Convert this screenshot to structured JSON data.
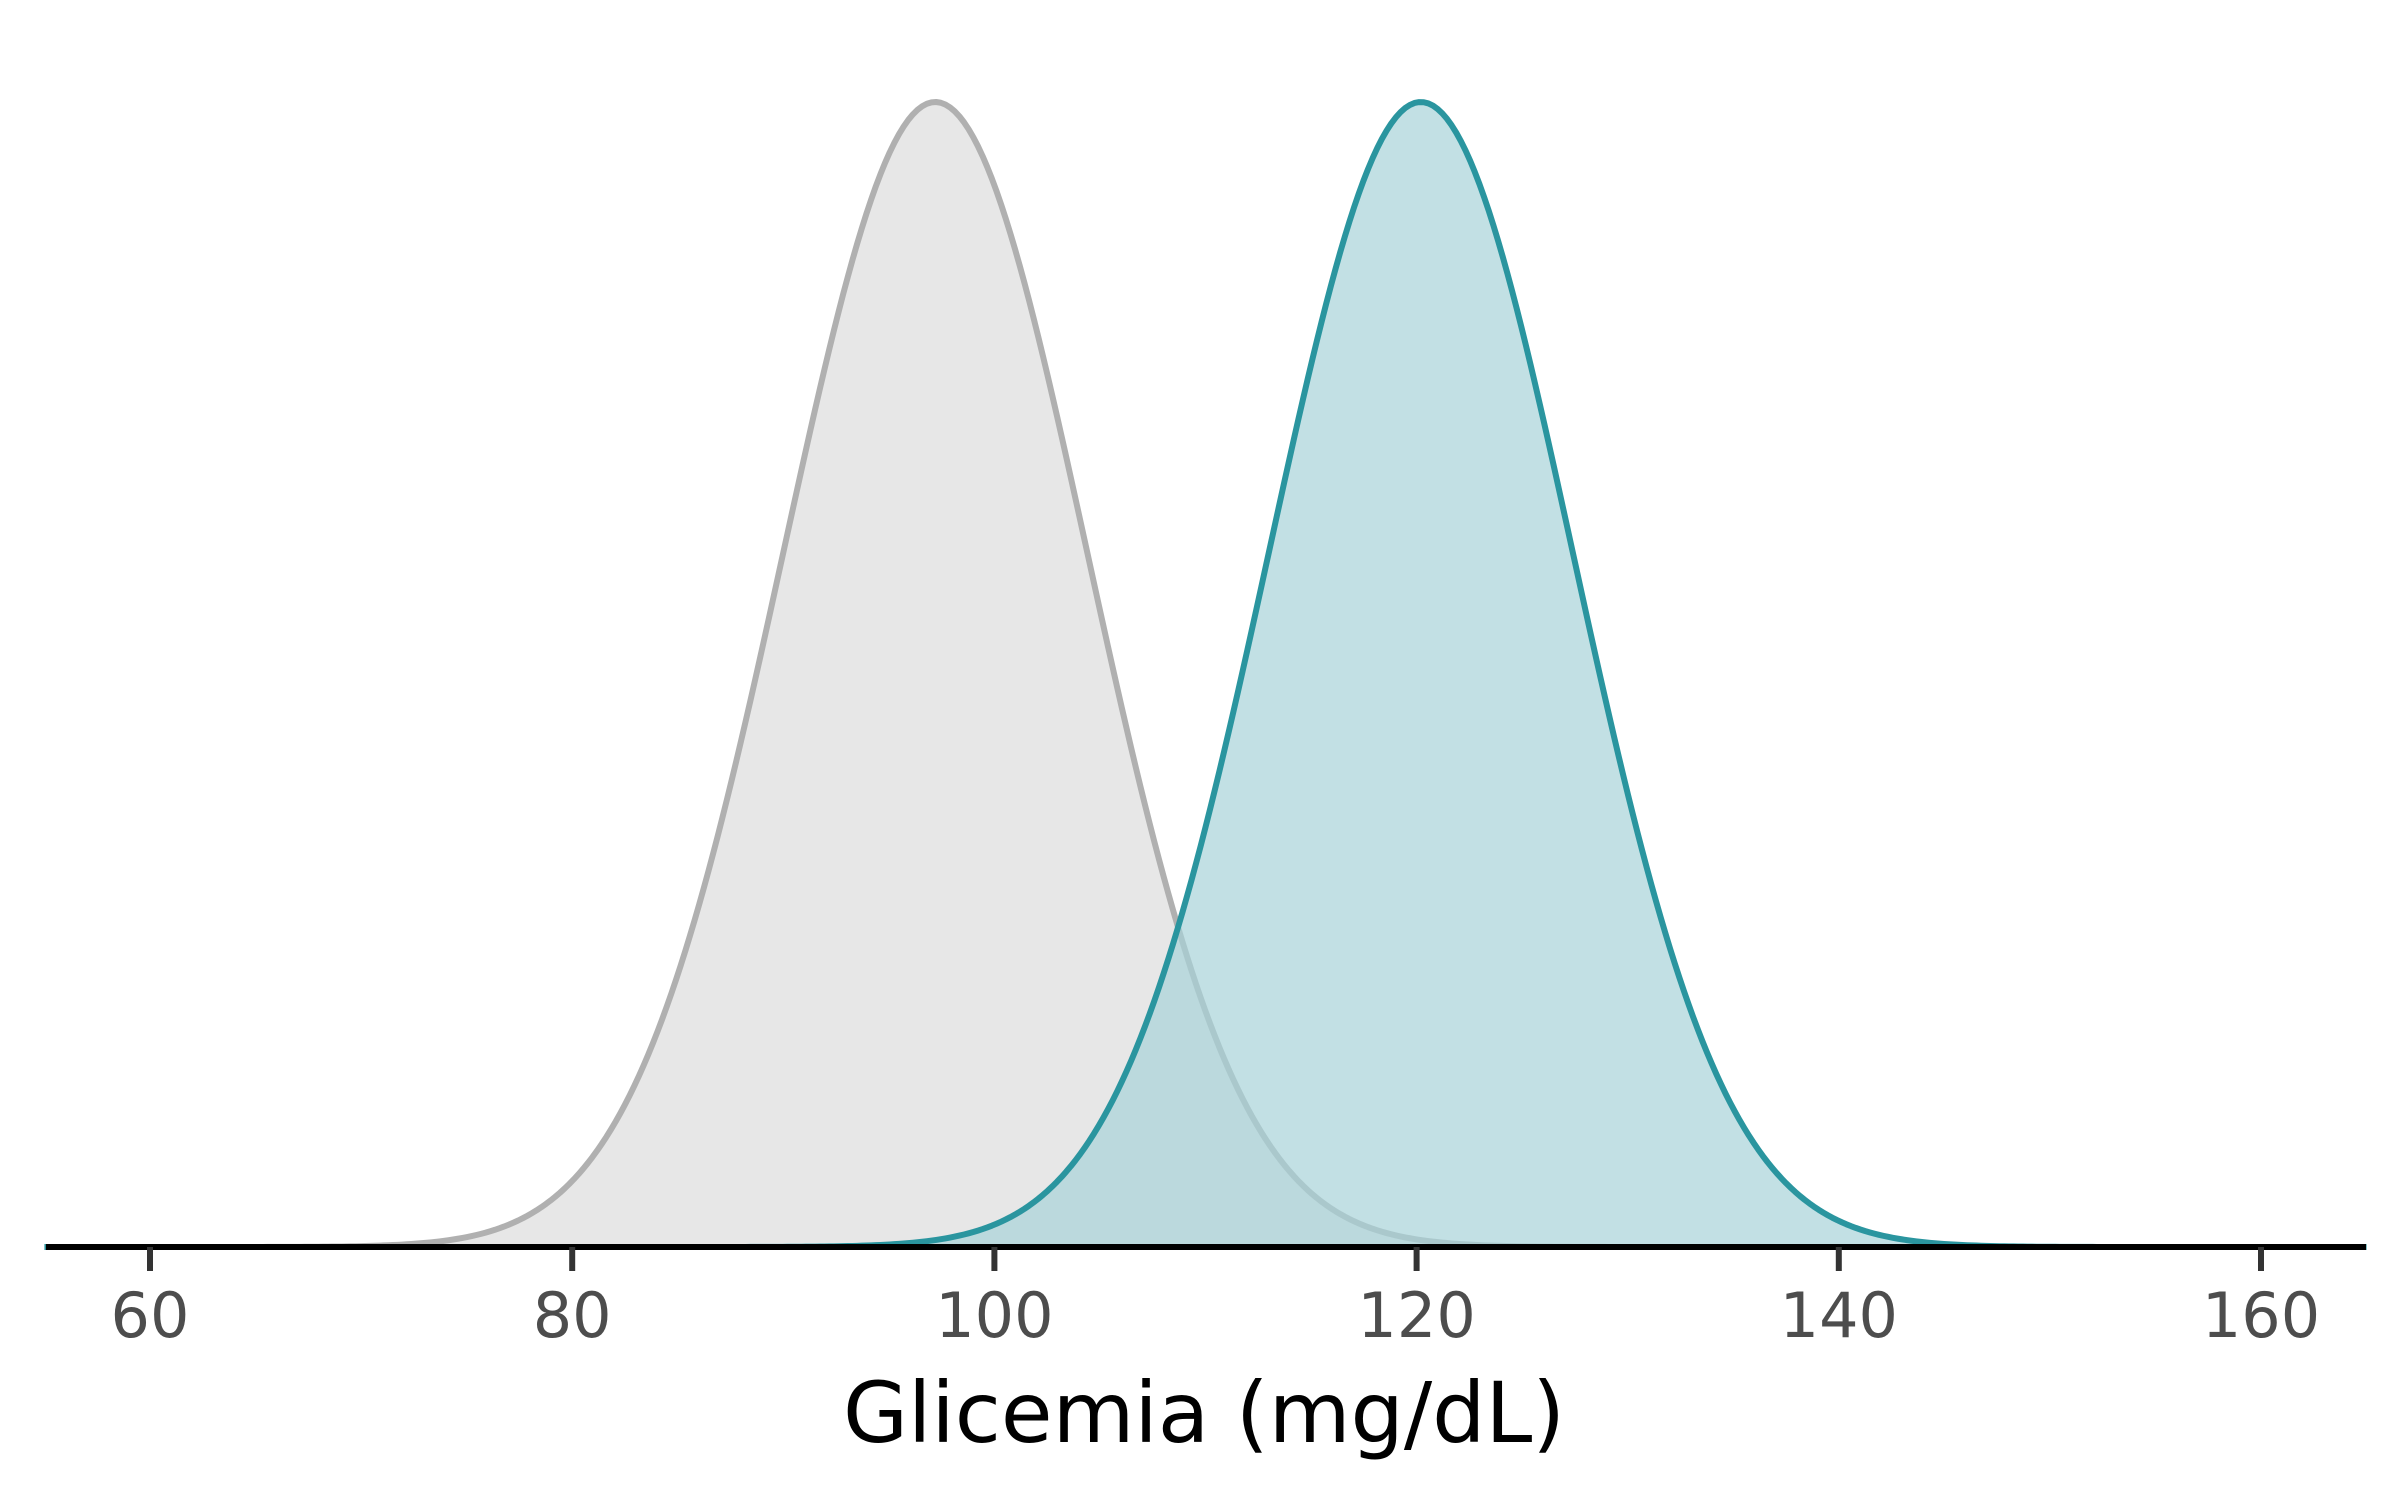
{
  "chart_data": {
    "type": "area",
    "title": "",
    "xlabel": "Glicemia (mg/dL)",
    "ylabel": "",
    "xlim": [
      55,
      165
    ],
    "x_ticks": [
      60,
      80,
      100,
      120,
      140,
      160
    ],
    "grid": false,
    "legend": "none",
    "y_axis_visible": false,
    "series": [
      {
        "distribution": "normal",
        "mean": 97.2,
        "sd": 7.2,
        "line_color": "#b0b0b0",
        "fill_color": "#e7e7e7"
      },
      {
        "distribution": "normal",
        "mean": 120.2,
        "sd": 7.2,
        "line_color": "#2a959f",
        "fill_color": "#a8d3d9"
      }
    ]
  }
}
